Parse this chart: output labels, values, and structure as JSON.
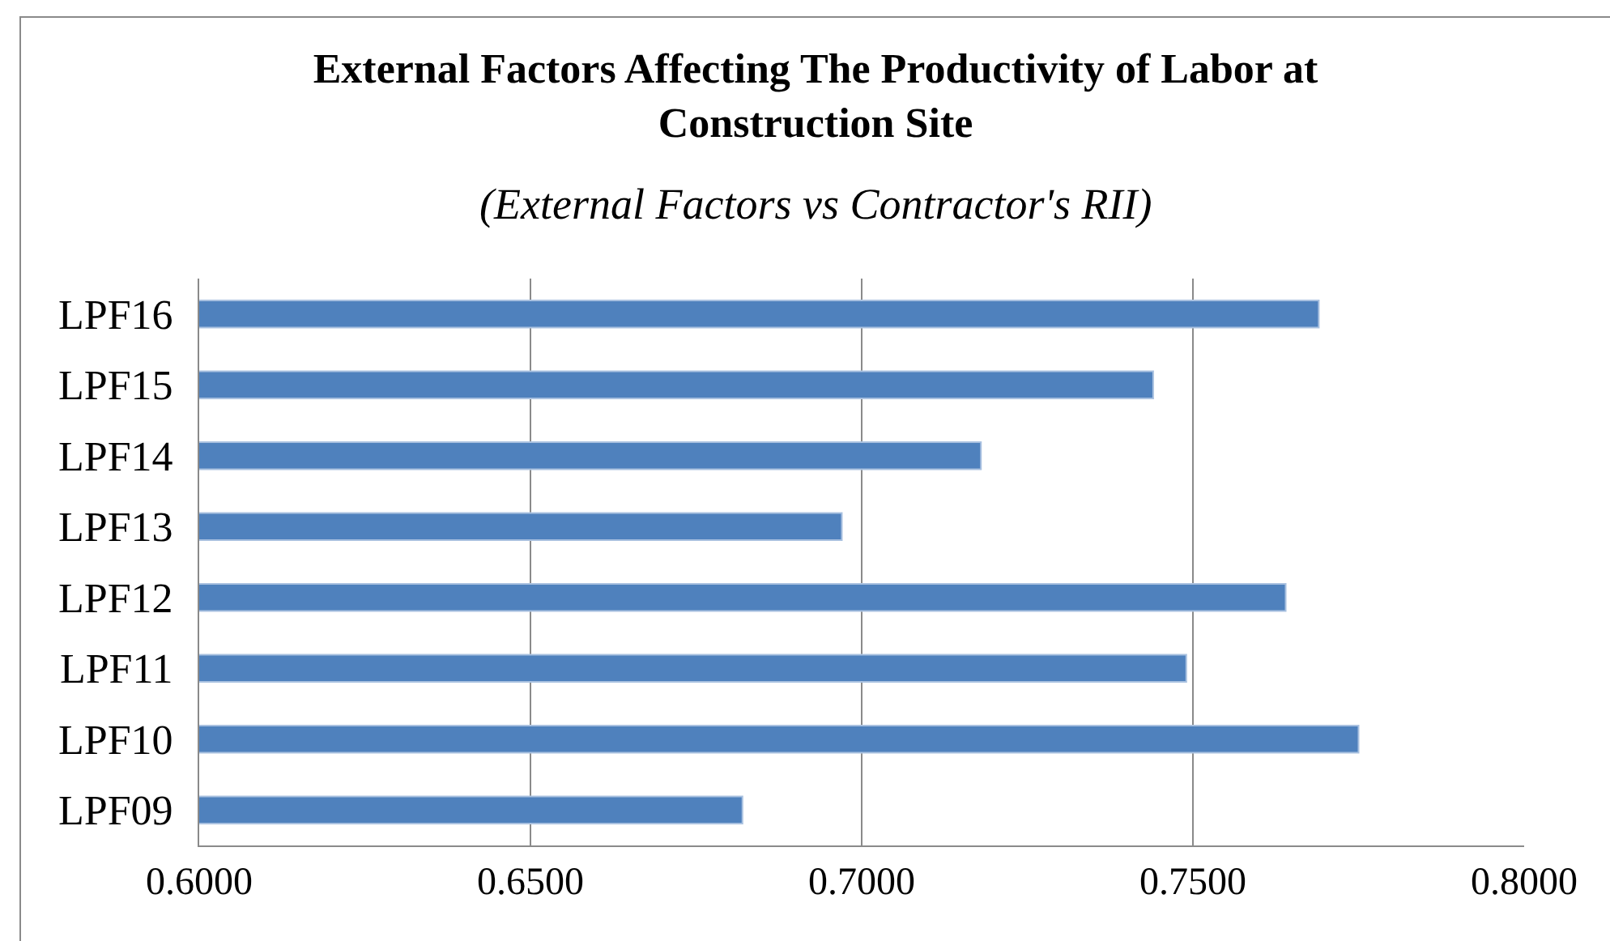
{
  "chart_data": {
    "type": "bar",
    "orientation": "horizontal",
    "title": "External Factors Affecting The Productivity of Labor at Construction Site",
    "subtitle": "(External Factors vs Contractor's RII)",
    "categories": [
      "LPF16",
      "LPF15",
      "LPF14",
      "LPF13",
      "LPF12",
      "LPF11",
      "LPF10",
      "LPF09"
    ],
    "values": [
      0.769,
      0.744,
      0.718,
      0.697,
      0.764,
      0.749,
      0.775,
      0.682
    ],
    "color": "#4f81bd",
    "xlim": [
      0.6,
      0.8
    ],
    "xticks": [
      {
        "value": 0.6,
        "label": "0.6000"
      },
      {
        "value": 0.65,
        "label": "0.6500"
      },
      {
        "value": 0.7,
        "label": "0.7000"
      },
      {
        "value": 0.75,
        "label": "0.7500"
      },
      {
        "value": 0.8,
        "label": "0.8000"
      }
    ],
    "grid": "x"
  }
}
